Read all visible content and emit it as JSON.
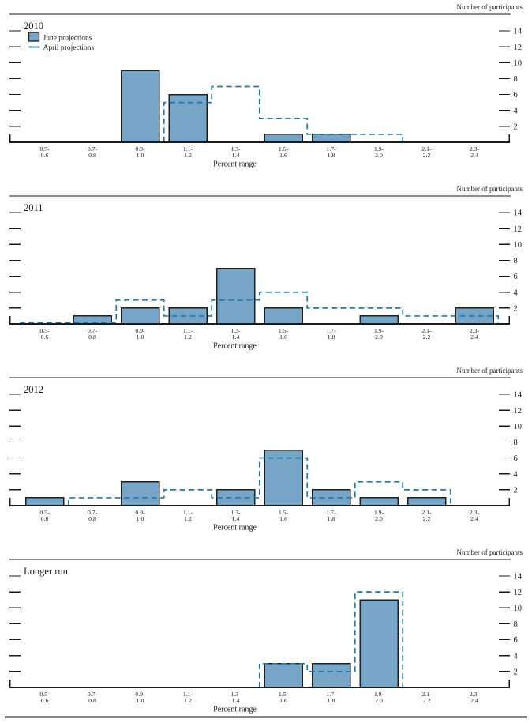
{
  "chart_data": {
    "type": "bar",
    "ylabel": "Number of participants",
    "xlabel": "Percent range",
    "ylim": [
      0,
      16
    ],
    "y_ticks": [
      2,
      4,
      6,
      8,
      10,
      12,
      14
    ],
    "grid": "off",
    "legend_position": "top-left-of-first-panel",
    "categories": [
      "0.5-0.6",
      "0.7-0.8",
      "0.9-1.0",
      "1.1-1.2",
      "1.3-1.4",
      "1.5-1.6",
      "1.7-1.8",
      "1.9-2.0",
      "2.1-2.2",
      "2.3-2.4"
    ],
    "category_label_lines": [
      [
        "0.5-",
        "0.6"
      ],
      [
        "0.7-",
        "0.8"
      ],
      [
        "0.9-",
        "1.0"
      ],
      [
        "1.1-",
        "1.2"
      ],
      [
        "1.3-",
        "1.4"
      ],
      [
        "1.5-",
        "1.6"
      ],
      [
        "1.7-",
        "1.8"
      ],
      [
        "1.9-",
        "2.0"
      ],
      [
        "2.1-",
        "2.2"
      ],
      [
        "2.3-",
        "2.4"
      ]
    ],
    "legend": [
      {
        "label": "June projections",
        "style": "filled-bar"
      },
      {
        "label": "April projections",
        "style": "dashed-line"
      }
    ],
    "panels": [
      {
        "title": "2010",
        "series": [
          {
            "name": "June projections",
            "style": "bar",
            "values": [
              0,
              0,
              9,
              6,
              0,
              1,
              1,
              0,
              0,
              0
            ]
          },
          {
            "name": "April projections",
            "style": "dashed-step",
            "values": [
              null,
              null,
              null,
              5,
              7,
              3,
              1,
              1,
              null,
              null
            ]
          }
        ]
      },
      {
        "title": "2011",
        "series": [
          {
            "name": "June projections",
            "style": "bar",
            "values": [
              0,
              1,
              2,
              2,
              7,
              2,
              0,
              1,
              0,
              2
            ]
          },
          {
            "name": "April projections",
            "style": "dashed-step",
            "values": [
              0,
              0,
              3,
              1,
              3,
              4,
              2,
              2,
              1,
              1
            ]
          }
        ]
      },
      {
        "title": "2012",
        "series": [
          {
            "name": "June projections",
            "style": "bar",
            "values": [
              1,
              0,
              3,
              0,
              2,
              7,
              2,
              1,
              1,
              0
            ]
          },
          {
            "name": "April projections",
            "style": "dashed-step",
            "values": [
              null,
              1,
              1,
              2,
              1,
              6,
              1,
              3,
              2,
              null
            ]
          }
        ]
      },
      {
        "title": "Longer run",
        "series": [
          {
            "name": "June projections",
            "style": "bar",
            "values": [
              0,
              0,
              0,
              0,
              0,
              3,
              3,
              11,
              0,
              0
            ]
          },
          {
            "name": "April projections",
            "style": "dashed-step",
            "values": [
              null,
              null,
              null,
              null,
              null,
              3,
              2,
              12,
              null,
              null
            ]
          }
        ]
      }
    ]
  },
  "colors": {
    "bar_fill": "#76a5c7",
    "bar_stroke": "#1f1f1f",
    "april_line": "#1a7aad",
    "axis": "#1a1a1a",
    "text": "#1a1a1a",
    "background": "#ffffff"
  }
}
